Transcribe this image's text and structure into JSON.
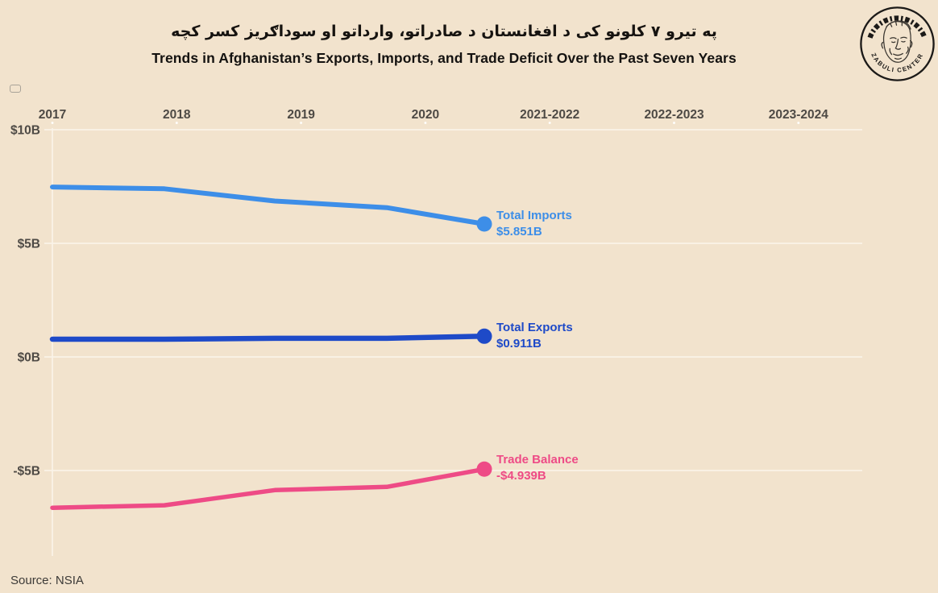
{
  "header": {
    "title_pashto": "په تیرو ۷ کلونو کی د افغانستان د صادراتو، وارداتو او سوداګریز کسر کچه",
    "title_english": "Trends in Afghanistan’s Exports, Imports, and Trade Deficit Over the Past Seven Years"
  },
  "logo": {
    "bottom_text": "ZABULI CENTER"
  },
  "source": {
    "text": "Source: NSIA"
  },
  "colors": {
    "background": "#f2e3cd",
    "imports": "#3d8ee8",
    "exports": "#1e4ac8",
    "trade_balance": "#ee4b86",
    "gridline": "#fbf4e9",
    "axis_text": "#4e4a45",
    "title_text": "#161310"
  },
  "chart_data": {
    "type": "line",
    "title": "Trends in Afghanistan’s Exports, Imports, and Trade Deficit Over the Past Seven Years",
    "title_pashto": "په تیرو ۷ کلونو کی د افغانستان د صادراتو، وارداتو او سوداګریز کسر کچه",
    "x_axis": {
      "ticks": [
        "2017",
        "2018",
        "2019",
        "2020",
        "2021-2022",
        "2022-2023",
        "2023-2024"
      ]
    },
    "y_axis": {
      "ticks": [
        {
          "label": "$10B",
          "value": 10
        },
        {
          "label": "$5B",
          "value": 5
        },
        {
          "label": "$0B",
          "value": 0
        },
        {
          "label": "-$5B",
          "value": -5
        }
      ],
      "unit": "USD billions",
      "visible_range": [
        -8.8,
        10.2
      ]
    },
    "grid": "horizontal-only",
    "legend_position": "inline-end-labels",
    "drawn_points_years": [
      "2017",
      "2018",
      "2019",
      "2020",
      "current (mid 2021-2022 draw)"
    ],
    "series": [
      {
        "id": "imports",
        "label": "Total Imports",
        "value_label": "$5.851B",
        "end_value": 5.851,
        "color": "#3d8ee8",
        "values": [
          7.48,
          7.4,
          6.86,
          6.57,
          5.851
        ]
      },
      {
        "id": "exports",
        "label": "Total Exports",
        "value_label": "$0.911B",
        "end_value": 0.911,
        "color": "#1e4ac8",
        "values": [
          0.78,
          0.78,
          0.82,
          0.82,
          0.911
        ]
      },
      {
        "id": "trade_balance",
        "label": "Trade Balance",
        "value_label": "-$4.939B",
        "end_value": -4.939,
        "color": "#ee4b86",
        "values": [
          -6.64,
          -6.53,
          -5.86,
          -5.72,
          -4.939
        ]
      }
    ],
    "note": "Animated line chart captured mid-draw: lines end between the 2020 and 2021-2022 ticks with current values shown in the end labels.",
    "source": "Source: NSIA"
  }
}
